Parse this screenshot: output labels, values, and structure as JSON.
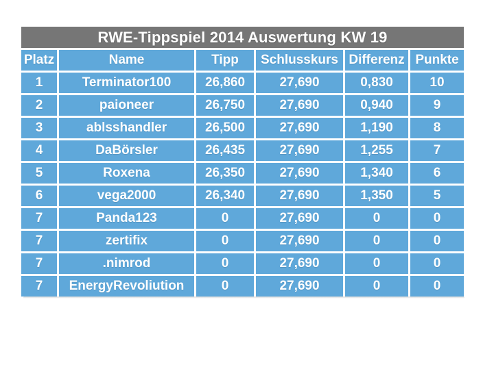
{
  "table": {
    "title": "RWE-Tippspiel 2014 Auswertung KW 19",
    "columns": [
      "Platz",
      "Name",
      "Tipp",
      "Schlusskurs",
      "Differenz",
      "Punkte"
    ],
    "rows": [
      [
        "1",
        "Terminator100",
        "26,860",
        "27,690",
        "0,830",
        "10"
      ],
      [
        "2",
        "paioneer",
        "26,750",
        "27,690",
        "0,940",
        "9"
      ],
      [
        "3",
        "ablsshandler",
        "26,500",
        "27,690",
        "1,190",
        "8"
      ],
      [
        "4",
        "DaBörsler",
        "26,435",
        "27,690",
        "1,255",
        "7"
      ],
      [
        "5",
        "Roxena",
        "26,350",
        "27,690",
        "1,340",
        "6"
      ],
      [
        "6",
        "vega2000",
        "26,340",
        "27,690",
        "1,350",
        "5"
      ],
      [
        "7",
        "Panda123",
        "0",
        "27,690",
        "0",
        "0"
      ],
      [
        "7",
        "zertifix",
        "0",
        "27,690",
        "0",
        "0"
      ],
      [
        "7",
        ".nimrod",
        "0",
        "27,690",
        "0",
        "0"
      ],
      [
        "7",
        "EnergyRevoliution",
        "0",
        "27,690",
        "0",
        "0"
      ]
    ]
  },
  "colors": {
    "title_bar": "#767676",
    "cell_blue": "#5fa8da",
    "text": "#ffffff",
    "background": "#ffffff"
  }
}
